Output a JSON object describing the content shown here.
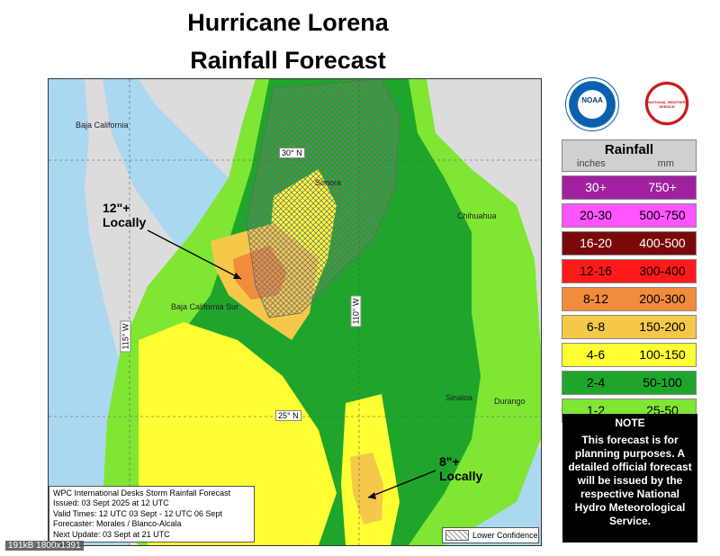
{
  "title_line1": "Hurricane Lorena",
  "title_line2": "Rainfall Forecast",
  "map": {
    "places": {
      "baja_california": "Baja California",
      "sonora": "Sonora",
      "chihuahua": "Chihuahua",
      "baja_california_sur": "Baja California Sur",
      "sinaloa": "Sinaloa",
      "durango": "Durango"
    },
    "gridlines": {
      "lat30": "30° N",
      "lat25": "25° N",
      "lon115": "115° W",
      "lon110": "110° W"
    },
    "callout_north_line1": "12\"+",
    "callout_north_line2": "Locally",
    "callout_south_line1": "8\"+",
    "callout_south_line2": "Locally",
    "info": {
      "line1": "WPC International Desks Storm Rainfall Forecast",
      "line2": "Issued: 03 Sept 2025 at 12 UTC",
      "line3": "Valid Times: 12 UTC 03 Sept - 12 UTC 06 Sept",
      "line4": "Forecaster: Morales / Blanco-Alcala",
      "line5": "Next Update: 03 Sept at 21 UTC"
    },
    "lower_confidence": "Lower Confidence"
  },
  "logos": {
    "noaa_text": "NOAA",
    "nws_text": "NATIONAL WEATHER SERVICE"
  },
  "legend": {
    "title": "Rainfall",
    "unit_inches": "inches",
    "unit_mm": "mm",
    "rows": [
      {
        "in": "30+",
        "mm": "750+",
        "color": "#a020a0",
        "text": "#ffffff"
      },
      {
        "in": "20-30",
        "mm": "500-750",
        "color": "#ff55ff",
        "text": "#000000"
      },
      {
        "in": "16-20",
        "mm": "400-500",
        "color": "#7a0a0a",
        "text": "#ffffff"
      },
      {
        "in": "12-16",
        "mm": "300-400",
        "color": "#ff1a1a",
        "text": "#000000"
      },
      {
        "in": "8-12",
        "mm": "200-300",
        "color": "#f08c3c",
        "text": "#000000"
      },
      {
        "in": "6-8",
        "mm": "150-200",
        "color": "#f5c84a",
        "text": "#000000"
      },
      {
        "in": "4-6",
        "mm": "100-150",
        "color": "#ffff33",
        "text": "#000000"
      },
      {
        "in": "2-4",
        "mm": "50-100",
        "color": "#1fa52b",
        "text": "#000000"
      },
      {
        "in": "1-2",
        "mm": "25-50",
        "color": "#7fe633",
        "text": "#000000"
      }
    ]
  },
  "note": {
    "heading": "NOTE",
    "body": "This forecast is for planning purposes. A detailed official forecast will be issued by the respective National Hydro Meteorological Service."
  },
  "watermark": "191kB 1800x1391"
}
